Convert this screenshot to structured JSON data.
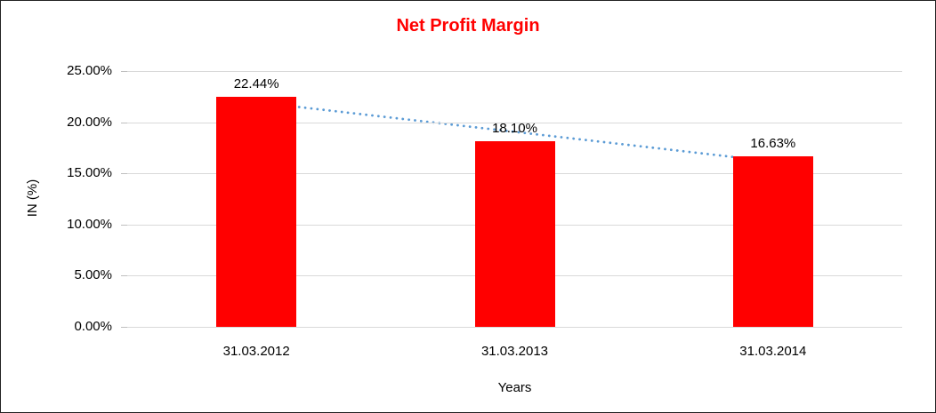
{
  "chart_data": {
    "type": "bar",
    "title": "Net Profit Margin",
    "categories": [
      "31.03.2012",
      "31.03.2013",
      "31.03.2014"
    ],
    "values": [
      22.44,
      18.1,
      16.63
    ],
    "data_labels": [
      "22.44%",
      "18.10%",
      "16.63%"
    ],
    "xlabel": "Years",
    "ylabel": "IN (%)",
    "ylim": [
      0,
      25
    ],
    "ytick_step": 5,
    "ytick_labels": [
      "25.00%",
      "20.00%",
      "15.00%",
      "10.00%",
      "5.00%",
      "0.00%"
    ],
    "grid": true,
    "legend": false,
    "trendline": {
      "type": "linear",
      "style": "dotted"
    },
    "colors": {
      "bar": "#FF0000",
      "title": "#FF0000",
      "trendline": "#5B9BD5",
      "gridline": "#D9D9D9",
      "tick": "#BFBFBF",
      "text": "#000000",
      "background": "#FFFFFF",
      "frame_border": "#222222"
    }
  }
}
